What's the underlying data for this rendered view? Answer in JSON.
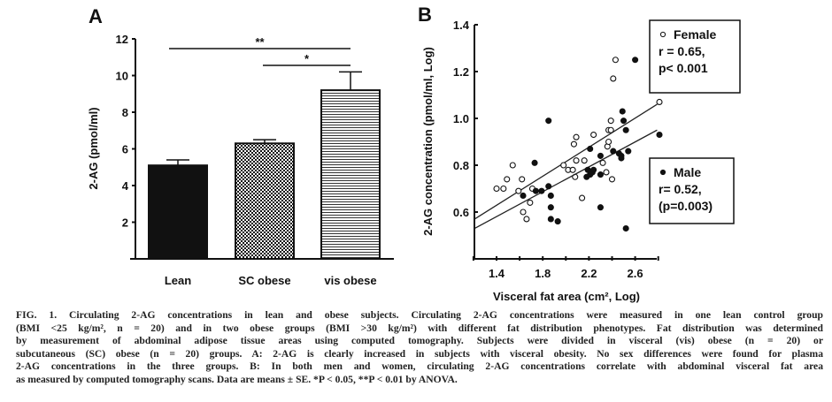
{
  "chart_data": [
    {
      "type": "bar",
      "panel_label": "A",
      "categories": [
        "Lean",
        "SC obese",
        "vis obese"
      ],
      "values": [
        5.1,
        6.3,
        9.2
      ],
      "error_upper": [
        5.4,
        6.5,
        10.2
      ],
      "fills": [
        "solid-black",
        "checkerboard",
        "horizontal-stripes"
      ],
      "ylabel": "2-AG (pmol/ml)",
      "xlabel": "",
      "ylim": [
        0,
        12
      ],
      "yticks": [
        2,
        4,
        6,
        8,
        10,
        12
      ],
      "grid": false,
      "significance": [
        {
          "from": "Lean",
          "to": "vis obese",
          "label": "**"
        },
        {
          "from": "SC obese",
          "to": "vis obese",
          "label": "*"
        }
      ]
    },
    {
      "type": "scatter",
      "panel_label": "B",
      "xlabel": "Visceral fat area (cm², Log)",
      "ylabel": "2-AG concentration (pmol/ml, Log)",
      "xlim": [
        1.2,
        2.8
      ],
      "ylim": [
        0.4,
        1.4
      ],
      "xticks": [
        1.4,
        1.8,
        2.2,
        2.6
      ],
      "yticks": [
        0.6,
        0.8,
        1.0,
        1.2,
        1.4
      ],
      "grid": false,
      "series": [
        {
          "name": "Female",
          "marker": "open-circle",
          "legend_lines": [
            "Female",
            "r = 0.65,",
            "p< 0.001"
          ],
          "legend_placement": "top-right",
          "points": [
            [
              1.4,
              0.7
            ],
            [
              1.46,
              0.7
            ],
            [
              1.49,
              0.74
            ],
            [
              1.54,
              0.8
            ],
            [
              1.59,
              0.69
            ],
            [
              1.62,
              0.74
            ],
            [
              1.63,
              0.6
            ],
            [
              1.66,
              0.57
            ],
            [
              1.69,
              0.64
            ],
            [
              1.71,
              0.7
            ],
            [
              1.98,
              0.8
            ],
            [
              2.02,
              0.78
            ],
            [
              2.06,
              0.78
            ],
            [
              2.07,
              0.89
            ],
            [
              2.08,
              0.75
            ],
            [
              2.09,
              0.92
            ],
            [
              2.09,
              0.82
            ],
            [
              2.14,
              0.66
            ],
            [
              2.16,
              0.82
            ],
            [
              2.24,
              0.93
            ],
            [
              2.32,
              0.81
            ],
            [
              2.35,
              0.77
            ],
            [
              2.36,
              0.88
            ],
            [
              2.37,
              0.9
            ],
            [
              2.37,
              0.95
            ],
            [
              2.39,
              0.95
            ],
            [
              2.39,
              0.99
            ],
            [
              2.4,
              0.74
            ],
            [
              2.41,
              1.17
            ],
            [
              2.43,
              1.25
            ],
            [
              2.81,
              1.07
            ]
          ],
          "fit_line": [
            [
              1.21,
              0.57
            ],
            [
              2.79,
              1.06
            ]
          ]
        },
        {
          "name": "Male",
          "marker": "filled-circle",
          "legend_lines": [
            "Male",
            "r= 0.52,",
            "(p=0.003)"
          ],
          "legend_placement": "center-right",
          "points": [
            [
              1.63,
              0.67
            ],
            [
              1.73,
              0.81
            ],
            [
              1.74,
              0.69
            ],
            [
              1.79,
              0.69
            ],
            [
              1.85,
              0.99
            ],
            [
              1.85,
              0.71
            ],
            [
              1.87,
              0.67
            ],
            [
              1.87,
              0.62
            ],
            [
              1.87,
              0.57
            ],
            [
              1.93,
              0.56
            ],
            [
              2.18,
              0.75
            ],
            [
              2.19,
              0.78
            ],
            [
              2.21,
              0.87
            ],
            [
              2.21,
              0.76
            ],
            [
              2.23,
              0.77
            ],
            [
              2.24,
              0.78
            ],
            [
              2.3,
              0.76
            ],
            [
              2.3,
              0.84
            ],
            [
              2.3,
              0.62
            ],
            [
              2.41,
              0.86
            ],
            [
              2.46,
              0.85
            ],
            [
              2.48,
              0.84
            ],
            [
              2.48,
              0.83
            ],
            [
              2.49,
              1.03
            ],
            [
              2.5,
              0.99
            ],
            [
              2.52,
              0.95
            ],
            [
              2.52,
              0.53
            ],
            [
              2.54,
              0.86
            ],
            [
              2.6,
              1.25
            ],
            [
              2.81,
              0.93
            ]
          ],
          "fit_line": [
            [
              1.21,
              0.53
            ],
            [
              2.79,
              0.95
            ]
          ]
        }
      ]
    }
  ],
  "caption_lines": [
    "FIG. 1. Circulating 2-AG concentrations in lean and obese subjects. Circulating 2-AG concentrations were measured in one lean control group",
    "(BMI <25 kg/m², n = 20) and in two obese groups (BMI >30 kg/m²) with different fat distribution phenotypes. Fat distribution was determined",
    "by measurement of abdominal adipose tissue areas using computed tomography. Subjects were divided in visceral (vis) obese (n = 20) or",
    "subcutaneous (SC) obese (n = 20) groups. A: 2-AG is clearly increased in subjects with visceral obesity. No sex differences were found for plasma",
    "2-AG concentrations in the three groups. B: In both men and women, circulating 2-AG concentrations correlate with abdominal visceral fat area",
    "as measured by computed tomography scans. Data are means ± SE. *P < 0.05, **P < 0.01 by ANOVA."
  ]
}
